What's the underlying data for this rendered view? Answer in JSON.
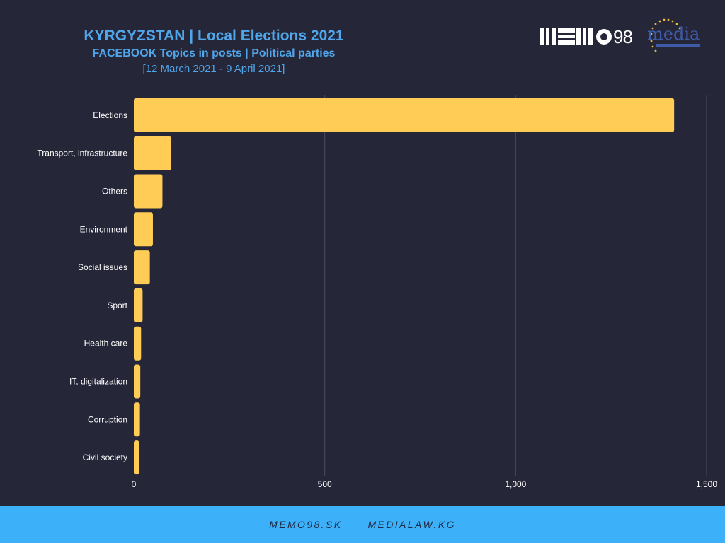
{
  "header": {
    "title": "KYRGYZSTAN | Local Elections 2021",
    "subtitle": "FACEBOOK Topics in posts | Political parties",
    "date_range": "[12 March 2021 - 9 April 2021]"
  },
  "logos": {
    "memo_text": "98",
    "media_text": "media"
  },
  "footer": {
    "link1": "MEMO98.SK",
    "link2": "MEDIALAW.KG"
  },
  "colors": {
    "background": "#262639",
    "bar": "#ffcc55",
    "title": "#4fa6ea",
    "footer_bg": "#3cb0f9",
    "gridline": "#4a4a5e"
  },
  "chart_data": {
    "type": "bar",
    "orientation": "horizontal",
    "categories": [
      "Elections",
      "Transport, infrastructure",
      "Others",
      "Environment",
      "Social issues",
      "Sport",
      "Health care",
      "IT, digitalization",
      "Corruption",
      "Civil society"
    ],
    "values": [
      1415,
      98,
      75,
      50,
      42,
      23,
      19,
      17,
      16,
      14
    ],
    "xlim": [
      0,
      1500
    ],
    "xticks": [
      0,
      500,
      1000,
      1500
    ],
    "xtick_labels": [
      "0",
      "500",
      "1,000",
      "1,500"
    ],
    "grid": true,
    "title": "",
    "xlabel": "",
    "ylabel": ""
  }
}
